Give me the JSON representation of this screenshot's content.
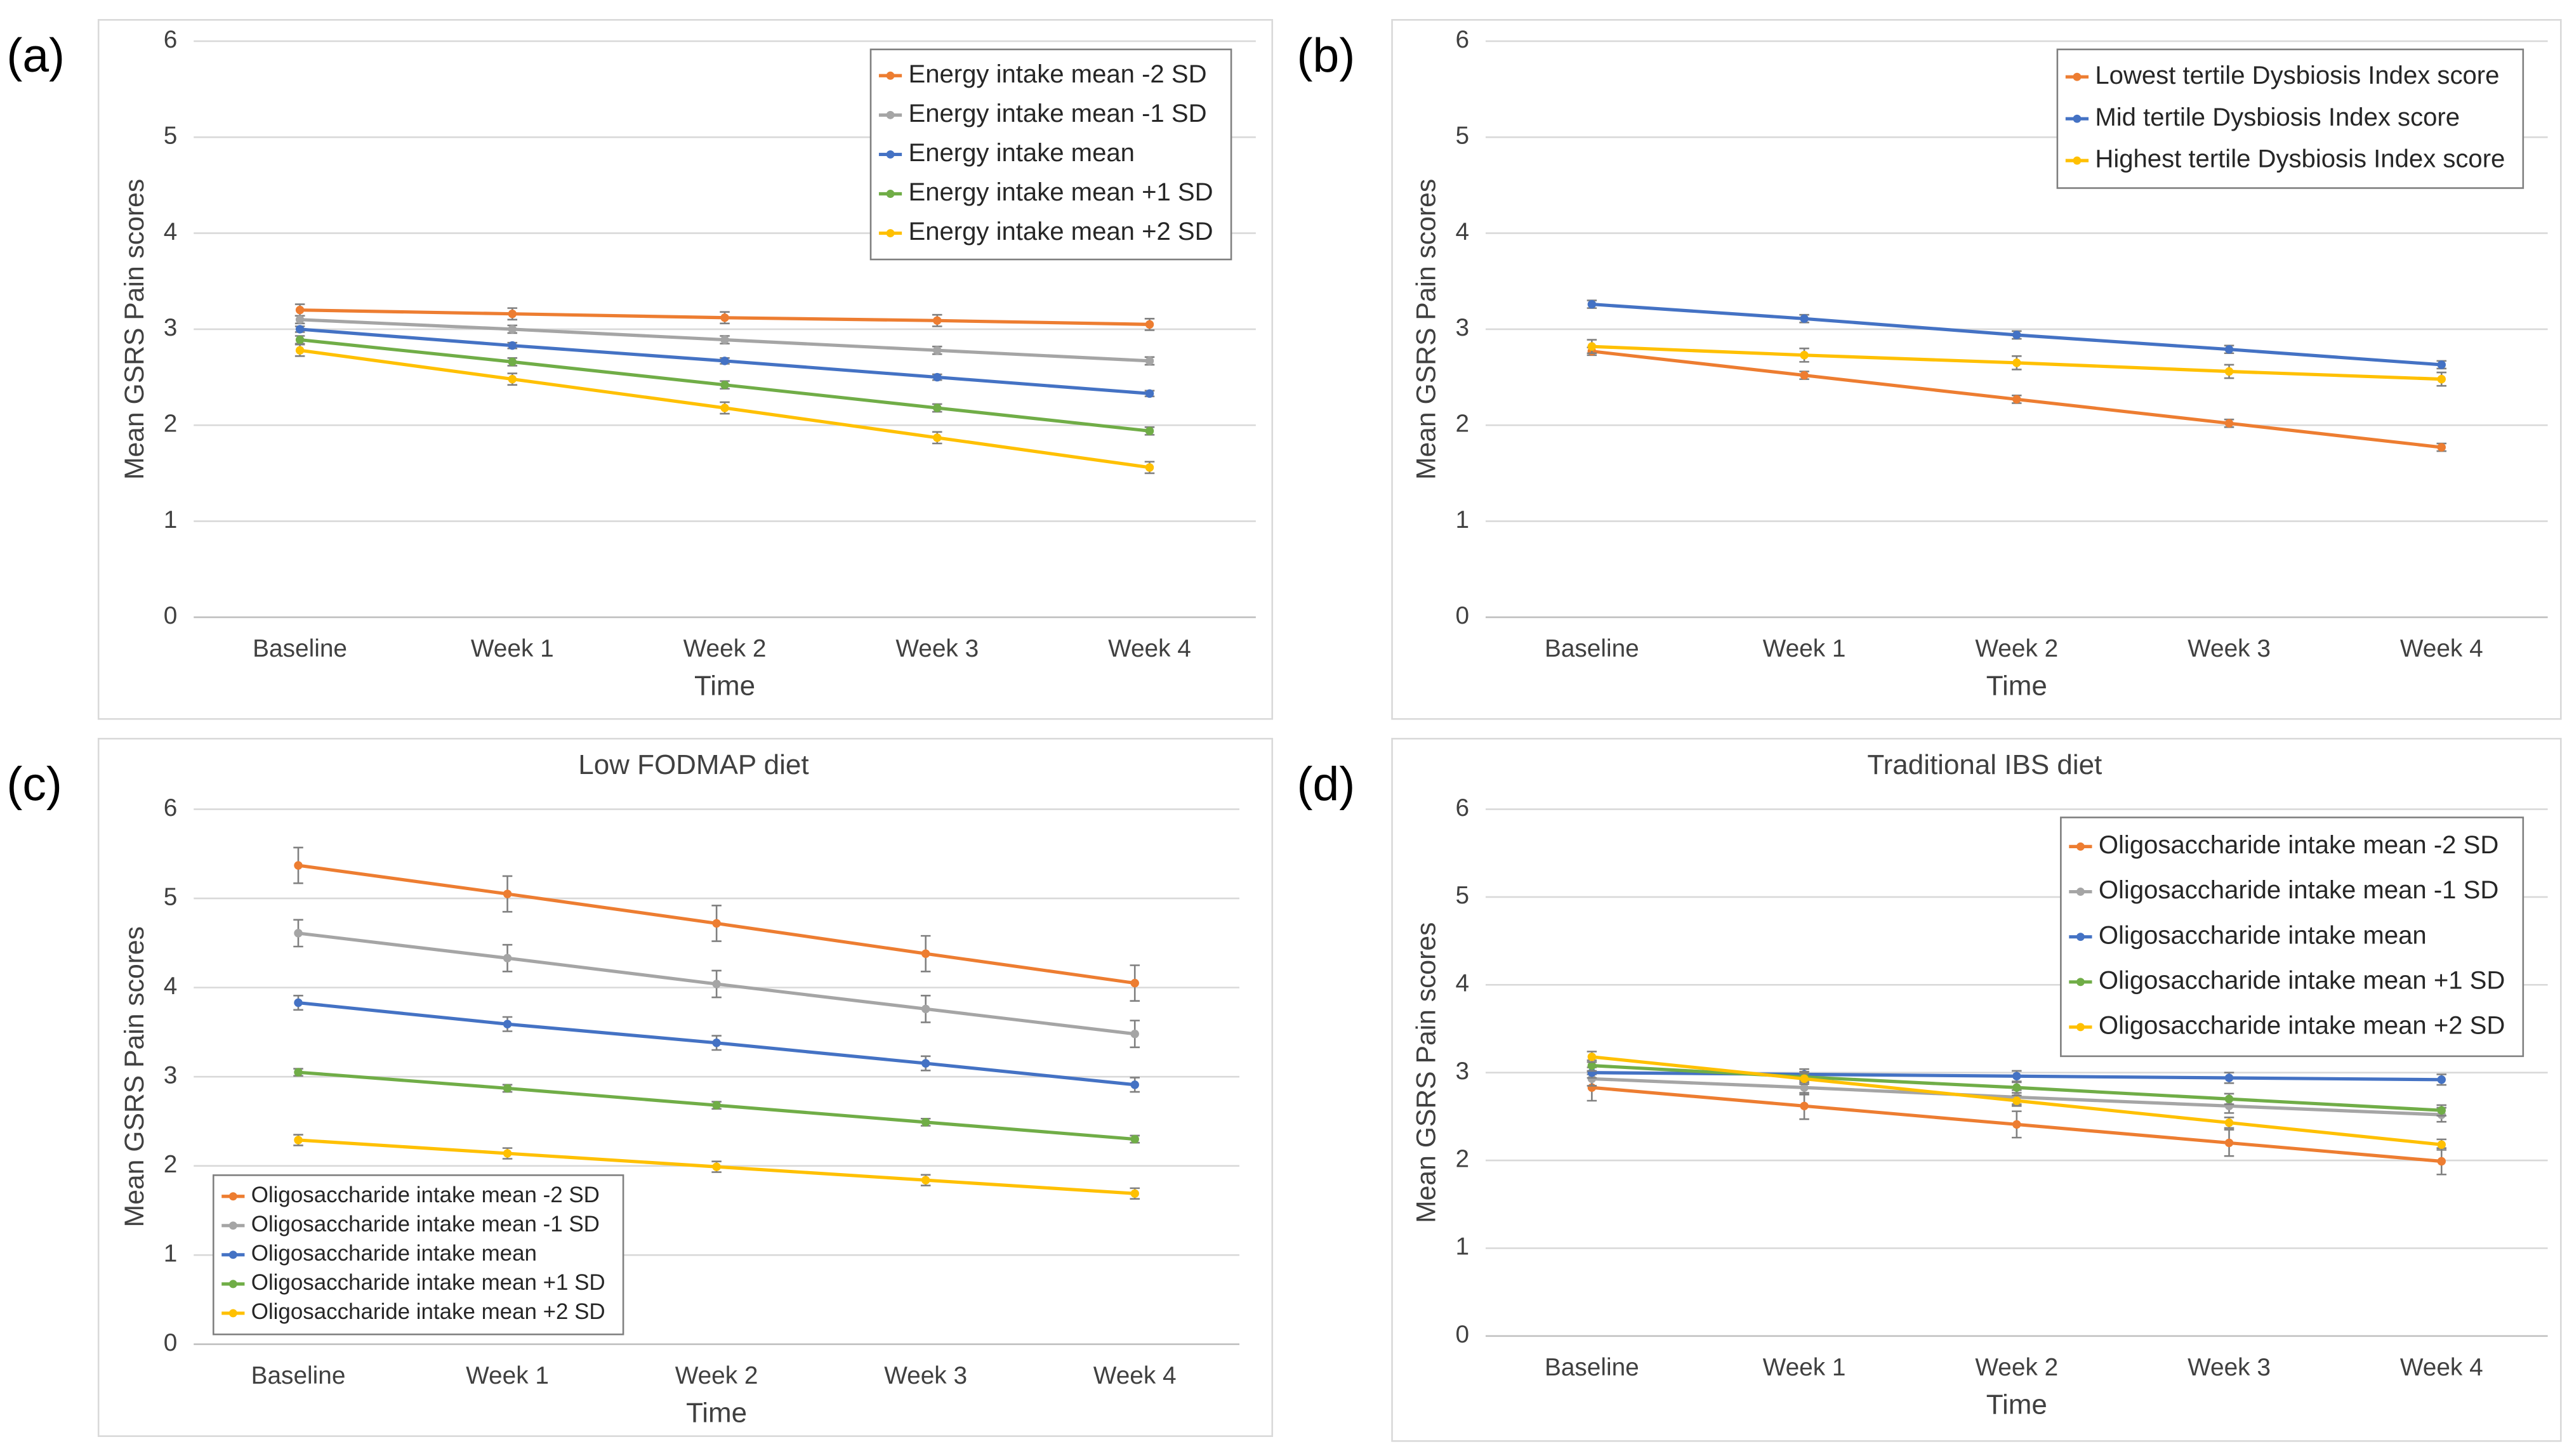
{
  "chart_data": [
    {
      "type": "line",
      "panel_label": "(a)",
      "x_label": "Time",
      "y_label": "Mean GSRS Pain scores",
      "categories": [
        "Baseline",
        "Week 1",
        "Week 2",
        "Week 3",
        "Week 4"
      ],
      "ylim": [
        0,
        6
      ],
      "yticks": [
        0,
        1,
        2,
        3,
        4,
        5,
        6
      ],
      "grid": true,
      "legend_position": "upper right",
      "series": [
        {
          "name": "Energy intake mean -2 SD",
          "color": "#ED7D31",
          "values": [
            3.2,
            3.16,
            3.12,
            3.09,
            3.05
          ],
          "errors": [
            0.06,
            0.06,
            0.06,
            0.06,
            0.06
          ]
        },
        {
          "name": "Energy intake mean -1 SD",
          "color": "#A5A5A5",
          "values": [
            3.1,
            3.0,
            2.89,
            2.78,
            2.67
          ],
          "errors": [
            0.04,
            0.04,
            0.04,
            0.04,
            0.04
          ]
        },
        {
          "name": "Energy intake mean",
          "color": "#4472C4",
          "values": [
            3.0,
            2.83,
            2.67,
            2.5,
            2.33
          ],
          "errors": [
            0.03,
            0.03,
            0.03,
            0.03,
            0.03
          ]
        },
        {
          "name": "Energy intake mean +1 SD",
          "color": "#70AD47",
          "values": [
            2.89,
            2.66,
            2.42,
            2.18,
            1.94
          ],
          "errors": [
            0.04,
            0.04,
            0.04,
            0.04,
            0.04
          ]
        },
        {
          "name": "Energy intake mean +2 SD",
          "color": "#FFC000",
          "values": [
            2.78,
            2.48,
            2.18,
            1.87,
            1.56
          ],
          "errors": [
            0.06,
            0.06,
            0.06,
            0.06,
            0.06
          ]
        }
      ]
    },
    {
      "type": "line",
      "panel_label": "(b)",
      "x_label": "Time",
      "y_label": "Mean GSRS Pain scores",
      "categories": [
        "Baseline",
        "Week 1",
        "Week 2",
        "Week 3",
        "Week 4"
      ],
      "ylim": [
        0,
        6
      ],
      "yticks": [
        0,
        1,
        2,
        3,
        4,
        5,
        6
      ],
      "grid": true,
      "legend_position": "upper right",
      "series": [
        {
          "name": "Lowest tertile Dysbiosis Index score",
          "color": "#ED7D31",
          "values": [
            2.77,
            2.52,
            2.27,
            2.02,
            1.77
          ],
          "errors": [
            0.04,
            0.04,
            0.04,
            0.04,
            0.04
          ]
        },
        {
          "name": "Mid tertile Dysbiosis Index score",
          "color": "#4472C4",
          "values": [
            3.26,
            3.11,
            2.94,
            2.79,
            2.63
          ],
          "errors": [
            0.04,
            0.04,
            0.04,
            0.04,
            0.04
          ]
        },
        {
          "name": "Highest tertile Dysbiosis Index score",
          "color": "#FFC000",
          "values": [
            2.82,
            2.73,
            2.65,
            2.56,
            2.48
          ],
          "errors": [
            0.07,
            0.07,
            0.07,
            0.07,
            0.07
          ]
        }
      ]
    },
    {
      "type": "line",
      "panel_label": "(c)",
      "title": "Low FODMAP diet",
      "x_label": "Time",
      "y_label": "Mean GSRS Pain scores",
      "categories": [
        "Baseline",
        "Week 1",
        "Week 2",
        "Week 3",
        "Week 4"
      ],
      "ylim": [
        0,
        6
      ],
      "yticks": [
        0,
        1,
        2,
        3,
        4,
        5,
        6
      ],
      "grid": true,
      "legend_position": "lower left",
      "series": [
        {
          "name": "Oligosaccharide intake mean -2 SD",
          "color": "#ED7D31",
          "values": [
            5.37,
            5.05,
            4.72,
            4.38,
            4.05
          ],
          "errors": [
            0.2,
            0.2,
            0.2,
            0.2,
            0.2
          ]
        },
        {
          "name": "Oligosaccharide intake mean -1 SD",
          "color": "#A5A5A5",
          "values": [
            4.61,
            4.33,
            4.04,
            3.76,
            3.48
          ],
          "errors": [
            0.15,
            0.15,
            0.15,
            0.15,
            0.15
          ]
        },
        {
          "name": "Oligosaccharide intake mean",
          "color": "#4472C4",
          "values": [
            3.83,
            3.59,
            3.38,
            3.15,
            2.91
          ],
          "errors": [
            0.08,
            0.08,
            0.08,
            0.08,
            0.08
          ]
        },
        {
          "name": "Oligosaccharide intake mean +1 SD",
          "color": "#70AD47",
          "values": [
            3.05,
            2.87,
            2.68,
            2.49,
            2.3
          ],
          "errors": [
            0.04,
            0.04,
            0.04,
            0.04,
            0.04
          ]
        },
        {
          "name": "Oligosaccharide intake mean +2 SD",
          "color": "#FFC000",
          "values": [
            2.29,
            2.14,
            1.99,
            1.84,
            1.69
          ],
          "errors": [
            0.06,
            0.06,
            0.06,
            0.06,
            0.06
          ]
        }
      ]
    },
    {
      "type": "line",
      "panel_label": "(d)",
      "title": "Traditional IBS diet",
      "x_label": "Time",
      "y_label": "Mean GSRS Pain scores",
      "categories": [
        "Baseline",
        "Week 1",
        "Week 2",
        "Week 3",
        "Week 4"
      ],
      "ylim": [
        0,
        6
      ],
      "yticks": [
        0,
        1,
        2,
        3,
        4,
        5,
        6
      ],
      "grid": true,
      "legend_position": "upper right",
      "series": [
        {
          "name": "Oligosaccharide intake mean -2 SD",
          "color": "#ED7D31",
          "values": [
            2.83,
            2.62,
            2.41,
            2.2,
            1.99
          ],
          "errors": [
            0.15,
            0.15,
            0.15,
            0.15,
            0.15
          ]
        },
        {
          "name": "Oligosaccharide intake mean -1 SD",
          "color": "#A5A5A5",
          "values": [
            2.93,
            2.83,
            2.72,
            2.62,
            2.52
          ],
          "errors": [
            0.08,
            0.08,
            0.08,
            0.08,
            0.08
          ]
        },
        {
          "name": "Oligosaccharide intake mean",
          "color": "#4472C4",
          "values": [
            3.0,
            2.98,
            2.96,
            2.94,
            2.92
          ],
          "errors": [
            0.06,
            0.06,
            0.06,
            0.06,
            0.06
          ]
        },
        {
          "name": "Oligosaccharide intake mean +1 SD",
          "color": "#70AD47",
          "values": [
            3.08,
            2.95,
            2.83,
            2.7,
            2.57
          ],
          "errors": [
            0.06,
            0.06,
            0.06,
            0.06,
            0.06
          ]
        },
        {
          "name": "Oligosaccharide intake mean +2 SD",
          "color": "#FFC000",
          "values": [
            3.18,
            2.93,
            2.68,
            2.43,
            2.18
          ],
          "errors": [
            0.06,
            0.06,
            0.06,
            0.06,
            0.06
          ]
        }
      ]
    }
  ]
}
